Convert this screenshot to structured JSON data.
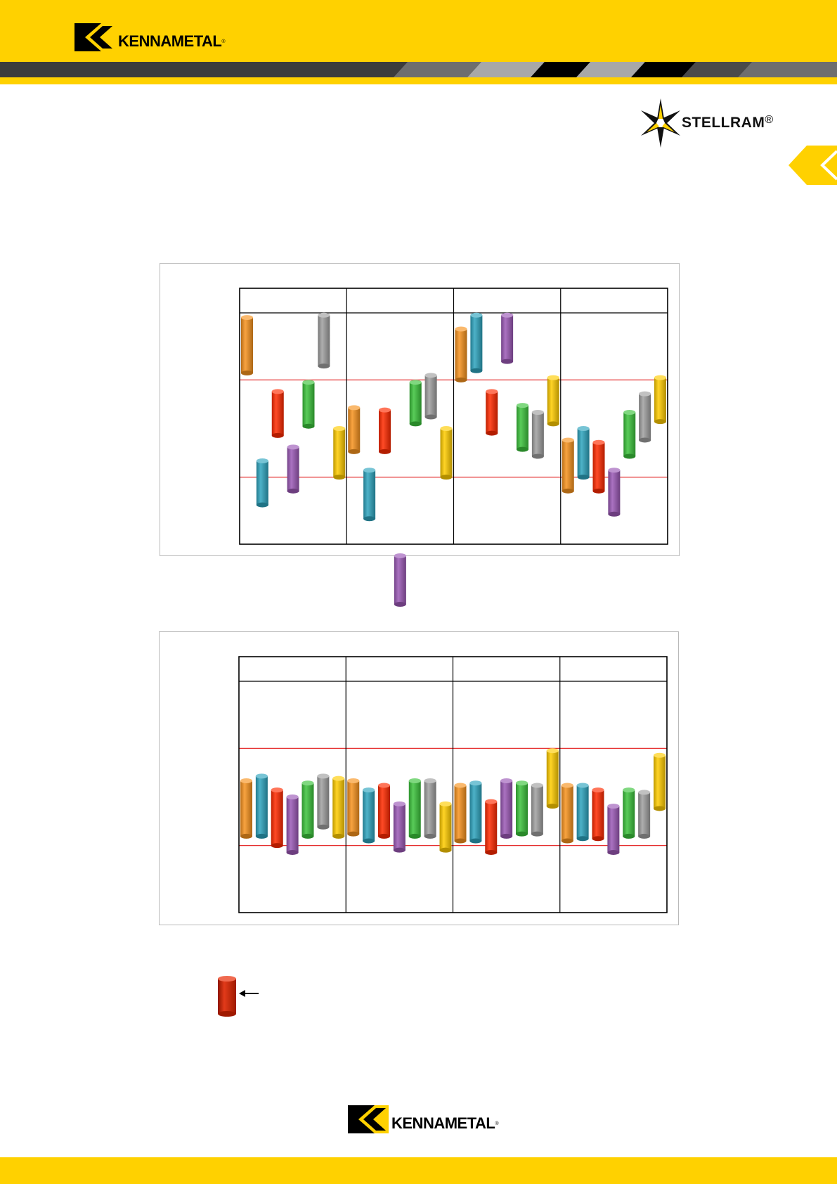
{
  "brand": {
    "name": "KENNAMETAL",
    "sub_brand": "STELLRAM",
    "yellow": "#FFD100",
    "dark": "#3c3c3c"
  },
  "icons": [
    "kennametal-k-icon",
    "stellram-star-icon",
    "chevron-left-icon",
    "arrow-left-icon"
  ],
  "chart_data": [
    {
      "type": "bar",
      "style": "floating range bars (cylinders) in four columns",
      "columns": 4,
      "grid": "two red horizontal reference lines",
      "colors": [
        "#F7931E",
        "#2EA4BE",
        "#FF2A00",
        "#9B59B6",
        "#3CC33C",
        "#A0A0A0",
        "#FFCC00"
      ],
      "series_by_column": [
        [
          [
            0.02,
            0.26
          ],
          [
            0.64,
            0.83
          ],
          [
            0.34,
            0.53
          ],
          [
            0.58,
            0.77
          ],
          [
            0.3,
            0.49
          ],
          [
            0.01,
            0.23
          ],
          [
            0.5,
            0.71
          ]
        ],
        [
          [
            0.41,
            0.6
          ],
          [
            0.68,
            0.89
          ],
          [
            0.42,
            0.6
          ],
          [
            1.05,
            1.26
          ],
          [
            0.3,
            0.48
          ],
          [
            0.27,
            0.45
          ],
          [
            0.5,
            0.71
          ]
        ],
        [
          [
            0.07,
            0.29
          ],
          [
            0.01,
            0.25
          ],
          [
            0.34,
            0.52
          ],
          [
            0.01,
            0.21
          ],
          [
            0.4,
            0.59
          ],
          [
            0.43,
            0.62
          ],
          [
            0.28,
            0.48
          ]
        ],
        [
          [
            0.55,
            0.77
          ],
          [
            0.5,
            0.71
          ],
          [
            0.56,
            0.77
          ],
          [
            0.68,
            0.87
          ],
          [
            0.43,
            0.62
          ],
          [
            0.35,
            0.55
          ],
          [
            0.28,
            0.47
          ]
        ]
      ]
    },
    {
      "type": "bar",
      "style": "floating range bars (cylinders) in four columns",
      "columns": 4,
      "grid": "two red horizontal reference lines",
      "colors": [
        "#F7931E",
        "#2EA4BE",
        "#FF2A00",
        "#9B59B6",
        "#3CC33C",
        "#A0A0A0",
        "#FFCC00"
      ],
      "series_by_column": [
        [
          [
            0.43,
            0.67
          ],
          [
            0.41,
            0.67
          ],
          [
            0.47,
            0.71
          ],
          [
            0.5,
            0.74
          ],
          [
            0.44,
            0.67
          ],
          [
            0.41,
            0.63
          ],
          [
            0.42,
            0.67
          ]
        ],
        [
          [
            0.43,
            0.66
          ],
          [
            0.47,
            0.69
          ],
          [
            0.45,
            0.67
          ],
          [
            0.53,
            0.73
          ],
          [
            0.43,
            0.67
          ],
          [
            0.43,
            0.67
          ],
          [
            0.53,
            0.73
          ]
        ],
        [
          [
            0.45,
            0.69
          ],
          [
            0.44,
            0.69
          ],
          [
            0.52,
            0.74
          ],
          [
            0.43,
            0.67
          ],
          [
            0.44,
            0.66
          ],
          [
            0.45,
            0.66
          ],
          [
            0.3,
            0.54
          ]
        ],
        [
          [
            0.45,
            0.69
          ],
          [
            0.45,
            0.68
          ],
          [
            0.47,
            0.68
          ],
          [
            0.54,
            0.74
          ],
          [
            0.47,
            0.67
          ],
          [
            0.48,
            0.67
          ],
          [
            0.32,
            0.55
          ]
        ]
      ]
    }
  ],
  "legend": {
    "marker_color": "#CC2200",
    "arrow": "arrow-left-icon"
  }
}
